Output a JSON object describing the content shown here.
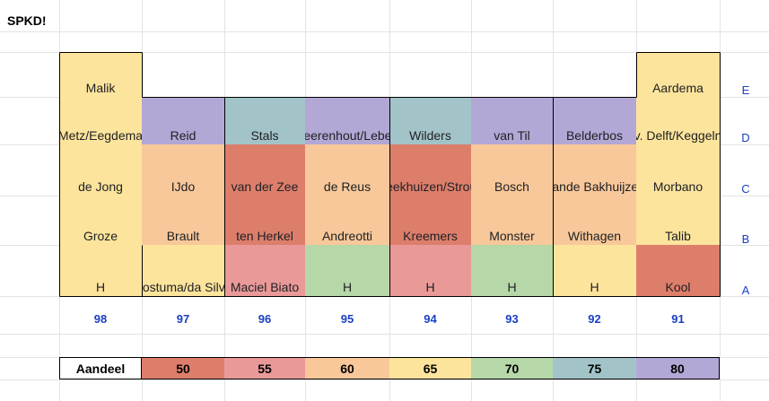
{
  "sheet": {
    "title": "SPKD!"
  },
  "colors": {
    "yellow": "#fde49c",
    "purple": "#b3a7d6",
    "teal": "#a2c4c9",
    "peach": "#f8c89a",
    "red": "#dd7e6b",
    "pink": "#ea9999",
    "green": "#b6d7a8"
  },
  "row_labels": [
    "E",
    "D",
    "C",
    "B",
    "A"
  ],
  "column_numbers": [
    "98",
    "97",
    "96",
    "95",
    "94",
    "93",
    "92",
    "91"
  ],
  "grid": {
    "row_E": [
      "Malik",
      "",
      "",
      "",
      "",
      "",
      "",
      "Aardema"
    ],
    "row_D": [
      "Metz/Eegdema",
      "Reid",
      "Stals",
      "Veerenhout/Leberl",
      "Wilders",
      "van Til",
      "Belderbos",
      "v. Delft/Keggeln"
    ],
    "row_C": [
      "de Jong",
      "IJdo",
      "van der Zee",
      "de Reus",
      "Beekhuizen/Strous",
      "Bosch",
      "Sande Bakhuijzen",
      "Morbano"
    ],
    "row_B": [
      "Groze",
      "Brault",
      "ten Herkel",
      "Andreotti",
      "Kreemers",
      "Monster",
      "Withagen",
      "Talib"
    ],
    "row_A": [
      "H",
      "Postuma/da Silva",
      "Maciel Biato",
      "H",
      "H",
      "H",
      "H",
      "Kool"
    ]
  },
  "legend": {
    "label": "Aandeel",
    "values": [
      "50",
      "55",
      "60",
      "65",
      "70",
      "75",
      "80"
    ]
  }
}
